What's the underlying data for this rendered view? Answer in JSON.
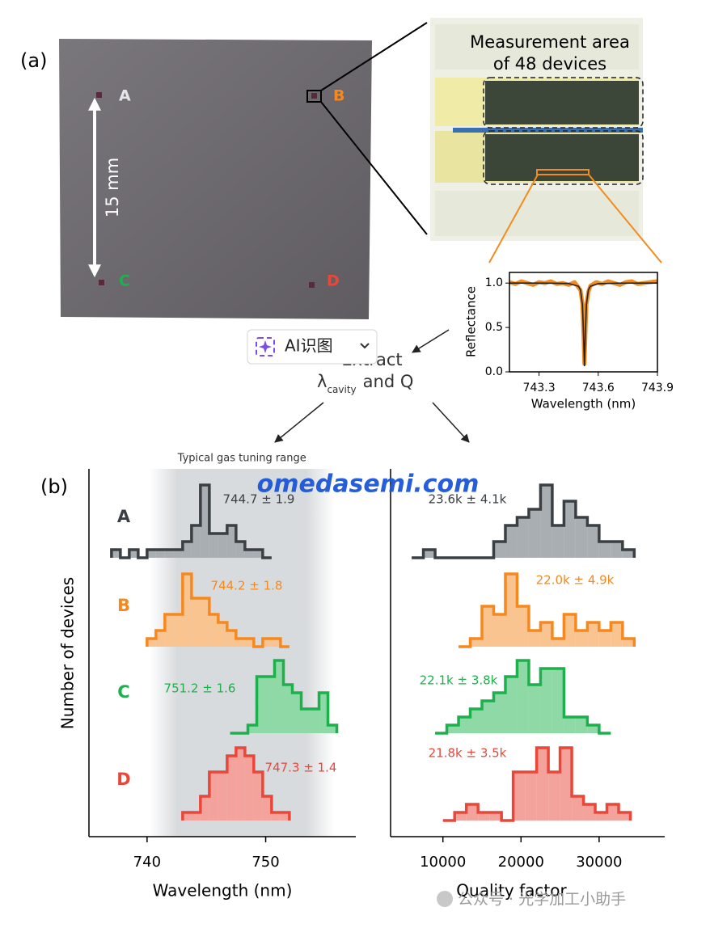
{
  "panel_a": {
    "label": "(a)",
    "scale_label": "15 mm",
    "chip_labels": [
      "A",
      "B",
      "C",
      "D"
    ],
    "zoom_title": [
      "Measurement area",
      "of 48 devices"
    ]
  },
  "extract": {
    "line1": "Extract",
    "lambda": "λ",
    "subscript": "cavity",
    "rest": "and  Q"
  },
  "ai_button": "AI识图",
  "panel_b_label": "(b)",
  "watermark": "omedasemi.com",
  "footer_watermark": "公众号 · 光学加工小助手",
  "chart_data": [
    {
      "type": "line",
      "xlabel": "Wavelength (nm)",
      "ylabel": "Reflectance",
      "xlim": [
        743.15,
        743.9
      ],
      "ylim": [
        0,
        1.12
      ],
      "xticks": [
        743.3,
        743.6,
        743.9
      ],
      "yticks": [
        {
          "value": 0,
          "label": "0.0"
        },
        0.5,
        {
          "value": 1,
          "label": "1.0"
        }
      ],
      "series": [
        {
          "color": "#f28c1e",
          "x": [
            743.15,
            743.18,
            743.21,
            743.24,
            743.27,
            743.3,
            743.33,
            743.36,
            743.39,
            743.42,
            743.45,
            743.48,
            743.5,
            743.51,
            743.52,
            743.525,
            743.53,
            743.535,
            743.54,
            743.55,
            743.56,
            743.59,
            743.62,
            743.65,
            743.68,
            743.71,
            743.74,
            743.77,
            743.8,
            743.83,
            743.86,
            743.9
          ],
          "values": [
            1.01,
            0.99,
            1.02,
            1.0,
            0.98,
            1.01,
            1.0,
            1.02,
            0.99,
            1.0,
            0.98,
            1.01,
            0.95,
            0.92,
            0.76,
            0.46,
            0.09,
            0.44,
            0.76,
            0.9,
            0.97,
            1.01,
            0.99,
            1.02,
            1.0,
            0.98,
            1.01,
            1.02,
            0.99,
            1.0,
            1.01,
            1.02
          ]
        },
        {
          "color": "#222222",
          "x": [
            743.15,
            743.25,
            743.35,
            743.45,
            743.5,
            743.51,
            743.52,
            743.525,
            743.53,
            743.535,
            743.54,
            743.55,
            743.56,
            743.6,
            743.7,
            743.8,
            743.9
          ],
          "values": [
            1.0,
            1.0,
            0.999,
            0.995,
            0.964,
            0.923,
            0.754,
            0.451,
            0.07,
            0.451,
            0.754,
            0.923,
            0.964,
            0.993,
            0.999,
            1.0,
            1.0
          ]
        }
      ]
    },
    {
      "type": "histogram",
      "xlabel": "Wavelength (nm)",
      "ylabel": "Number of devices",
      "xlim": [
        735.1,
        757.6
      ],
      "xticks": [
        740,
        750
      ],
      "shade_label": "Typical gas tuning range",
      "shade_range": [
        740.2,
        755.8
      ],
      "series": [
        {
          "name": "A",
          "color": "#3a3f44",
          "fill": "#a9aeb2",
          "annotation": "744.7 ± 1.9",
          "bins": [
            737,
            737.75,
            738.5,
            739.25,
            740,
            740.75,
            741.5,
            742.25,
            743,
            743.75,
            744.5,
            745.25,
            746,
            746.75,
            747.5,
            748.25,
            749,
            749.75,
            750.5
          ],
          "values": [
            1,
            0,
            1,
            0,
            1,
            1,
            1,
            1,
            2,
            4,
            9,
            3,
            3,
            4,
            2,
            1,
            1,
            0
          ]
        },
        {
          "name": "B",
          "color": "#f5891f",
          "fill": "#f9c48f",
          "annotation": "744.2 ± 1.8",
          "bins": [
            740,
            740.75,
            741.5,
            742.25,
            743,
            743.75,
            744.5,
            745.25,
            746,
            746.75,
            747.5,
            748.25,
            749,
            749.75,
            750.5,
            751.25,
            752
          ],
          "values": [
            1,
            2,
            4,
            4,
            9,
            6,
            6,
            4,
            3,
            2,
            1,
            1,
            0,
            1,
            1,
            0
          ]
        },
        {
          "name": "C",
          "color": "#1db04c",
          "fill": "#8fd9a6",
          "annotation": "751.2 ± 1.6",
          "bins": [
            747,
            747.75,
            748.5,
            749.25,
            750,
            750.75,
            751.5,
            752.25,
            753,
            753.75,
            754.5,
            755.25,
            756
          ],
          "values": [
            0,
            0,
            1,
            7,
            7,
            9,
            6,
            5,
            3,
            3,
            5,
            1
          ]
        },
        {
          "name": "D",
          "color": "#e8473a",
          "fill": "#f4a39c",
          "annotation": "747.3 ± 1.4",
          "bins": [
            743,
            743.75,
            744.5,
            745.25,
            746,
            746.75,
            747.5,
            748.25,
            749,
            749.75,
            750.5,
            751.25,
            752
          ],
          "values": [
            1,
            1,
            3,
            6,
            6,
            8,
            9,
            8,
            6,
            3,
            1,
            1
          ]
        }
      ]
    },
    {
      "type": "histogram",
      "xlabel": "Quality factor",
      "xlim": [
        3300,
        38400
      ],
      "xticks": [
        10000,
        20000,
        30000
      ],
      "series": [
        {
          "name": "A",
          "color": "#3a3f44",
          "fill": "#a9aeb2",
          "annotation": "23.6k ± 4.1k",
          "bins": [
            6000,
            7500,
            9000,
            10500,
            12000,
            13500,
            15000,
            16500,
            18000,
            19500,
            21000,
            22500,
            24000,
            25500,
            27000,
            28500,
            30000,
            31500,
            33000,
            34500
          ],
          "values": [
            0,
            1,
            0,
            0,
            0,
            0,
            0,
            2,
            4,
            5,
            6,
            9,
            4,
            7,
            5,
            4,
            2,
            2,
            1
          ]
        },
        {
          "name": "B",
          "color": "#f5891f",
          "fill": "#f9c48f",
          "annotation": "22.0k ± 4.9k",
          "bins": [
            12000,
            13500,
            15000,
            16500,
            18000,
            19500,
            21000,
            22500,
            24000,
            25500,
            27000,
            28500,
            30000,
            31500,
            33000,
            34500
          ],
          "values": [
            0,
            1,
            5,
            4,
            9,
            5,
            2,
            3,
            1,
            4,
            2,
            3,
            2,
            3,
            1
          ]
        },
        {
          "name": "C",
          "color": "#1db04c",
          "fill": "#8fd9a6",
          "annotation": "22.1k ± 3.8k",
          "bins": [
            9000,
            10500,
            12000,
            13500,
            15000,
            16500,
            18000,
            19500,
            21000,
            22500,
            24000,
            25500,
            27000,
            28500,
            30000,
            31500
          ],
          "values": [
            0,
            1,
            2,
            3,
            4,
            5,
            7,
            9,
            6,
            8,
            8,
            2,
            2,
            1,
            0
          ]
        },
        {
          "name": "D",
          "color": "#e8473a",
          "fill": "#f4a39c",
          "annotation": "21.8k ± 3.5k",
          "bins": [
            10000,
            11500,
            13000,
            14500,
            16000,
            17500,
            19000,
            20500,
            22000,
            23500,
            25000,
            26500,
            28000,
            29500,
            31000,
            32500,
            34000
          ],
          "values": [
            0,
            1,
            2,
            1,
            1,
            0,
            6,
            6,
            9,
            6,
            9,
            3,
            2,
            1,
            2,
            1
          ]
        }
      ]
    }
  ]
}
